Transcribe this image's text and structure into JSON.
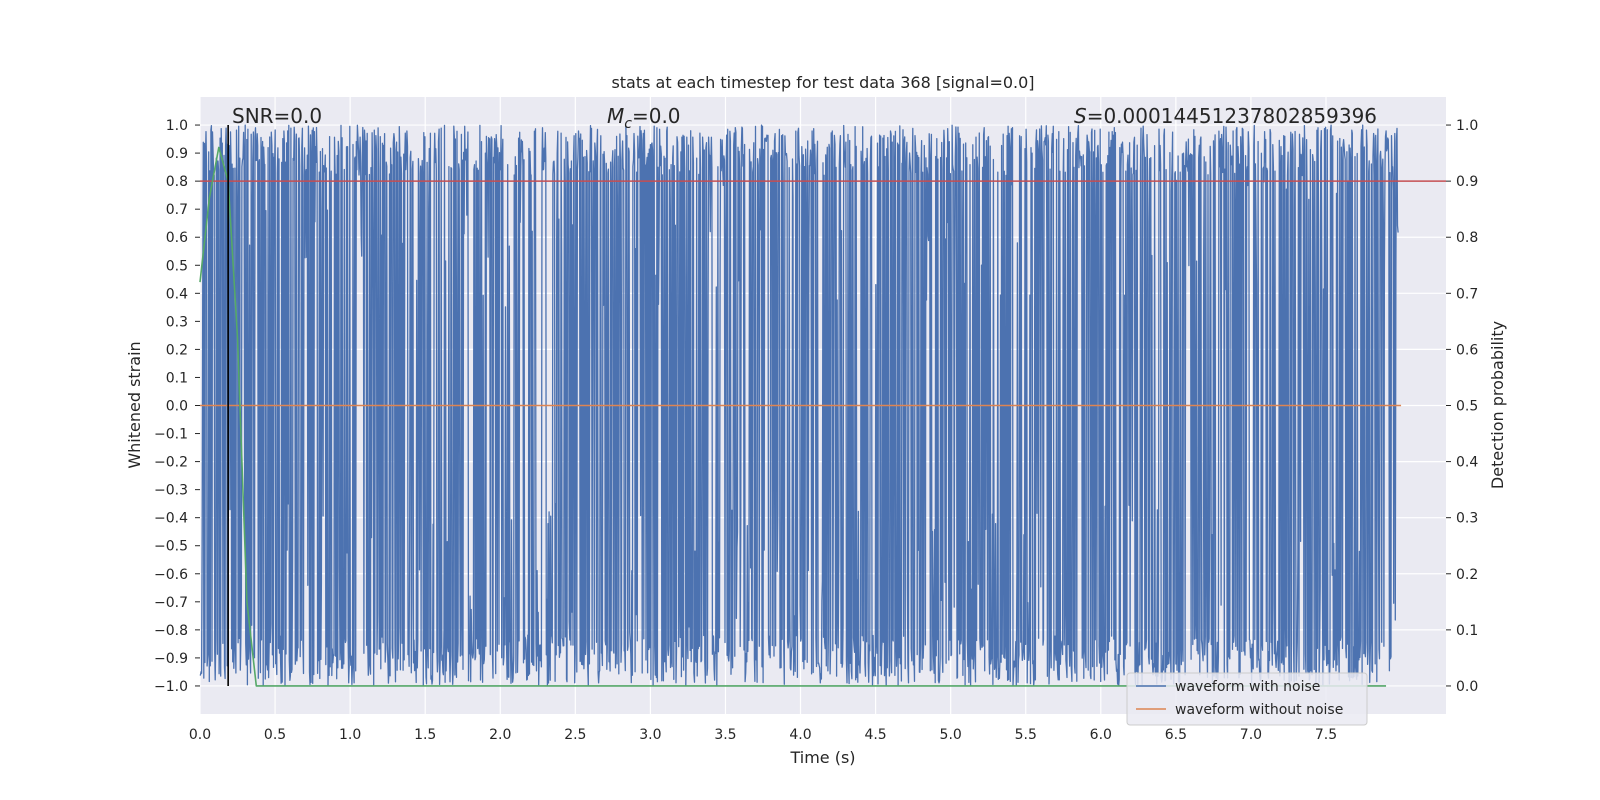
{
  "chart_data": {
    "type": "line",
    "title": "stats at each timestep for test data 368 [signal=0.0]",
    "xlabel": "Time (s)",
    "ylabel": "Whitened strain",
    "y2label": "Detection probability",
    "xlim": [
      0.0,
      8.0
    ],
    "ylim": [
      -1.1,
      1.1
    ],
    "y2lim": [
      -0.05,
      1.05
    ],
    "xticks": [
      "0.0",
      "0.5",
      "1.0",
      "1.5",
      "2.0",
      "2.5",
      "3.0",
      "3.5",
      "4.0",
      "4.5",
      "5.0",
      "5.5",
      "6.0",
      "6.5",
      "7.0",
      "7.5"
    ],
    "yticks": [
      "1.0",
      "0.9",
      "0.8",
      "0.7",
      "0.6",
      "0.5",
      "0.4",
      "0.3",
      "0.2",
      "0.1",
      "0.0",
      "−0.1",
      "−0.2",
      "−0.3",
      "−0.4",
      "−0.5",
      "−0.6",
      "−0.7",
      "−0.8",
      "−0.9",
      "−1.0"
    ],
    "y2ticks": [
      "1.0",
      "0.9",
      "0.8",
      "0.7",
      "0.6",
      "0.5",
      "0.4",
      "0.3",
      "0.2",
      "0.1",
      "0.0"
    ],
    "grid": true,
    "legend_position": "bottom-right",
    "annotations": {
      "snr": "SNR=0.0",
      "mc_symbol": "M",
      "mc_sub": "c",
      "mc_value": "=0.0",
      "s_symbol": "S",
      "s_value": "=0.00014451237802859396"
    },
    "series": [
      {
        "name": "waveform with noise",
        "color": "#4c72b0",
        "axis": "left",
        "description": "noisy whitened strain oscillating between -1.0 and 1.0 over 0–8 s"
      },
      {
        "name": "waveform without noise",
        "color": "#dd8452",
        "axis": "left",
        "x": [
          0.0,
          8.0
        ],
        "y": [
          0.0,
          0.0
        ]
      }
    ],
    "threshold": {
      "color": "#c44e52",
      "axis": "right",
      "value": 0.9
    },
    "detection_probability": {
      "color": "#55a868",
      "axis": "right",
      "x": [
        0.0,
        0.0625,
        0.125,
        0.1875,
        0.25,
        0.3125,
        0.375,
        0.5,
        1.0,
        2.0,
        4.0,
        6.0,
        7.5,
        7.9
      ],
      "y": [
        0.72,
        0.87,
        0.96,
        0.9,
        0.62,
        0.15,
        0.0,
        0.0,
        0.0,
        0.0,
        0.0,
        0.0,
        0.0,
        0.0
      ]
    },
    "vline": {
      "x": 0.1875,
      "color": "#000000"
    }
  }
}
